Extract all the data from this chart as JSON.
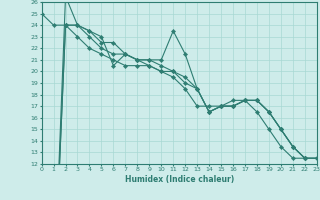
{
  "xlabel": "Humidex (Indice chaleur)",
  "xlim": [
    0,
    23
  ],
  "ylim": [
    12,
    26
  ],
  "yticks": [
    12,
    13,
    14,
    15,
    16,
    17,
    18,
    19,
    20,
    21,
    22,
    23,
    24,
    25,
    26
  ],
  "xticks": [
    0,
    1,
    2,
    3,
    4,
    5,
    6,
    7,
    8,
    9,
    10,
    11,
    12,
    13,
    14,
    15,
    16,
    17,
    18,
    19,
    20,
    21,
    22,
    23
  ],
  "bg_color": "#ceecea",
  "grid_color": "#a8d8d4",
  "line_color": "#2e7d72",
  "lines": [
    [
      0,
      26.5,
      24.0,
      23.5,
      23.0,
      20.5,
      21.5,
      21.0,
      21.0,
      21.0,
      23.5,
      21.5,
      18.5,
      16.5,
      17.0,
      17.0,
      17.5,
      17.5,
      16.5,
      15.0,
      13.5,
      12.5,
      12.5
    ],
    [
      0,
      24.0,
      24.0,
      23.0,
      22.0,
      21.5,
      21.5,
      21.0,
      20.5,
      20.0,
      20.0,
      19.5,
      18.5,
      16.5,
      17.0,
      17.0,
      17.5,
      17.5,
      16.5,
      15.0,
      13.5,
      12.5,
      12.5
    ],
    [
      0,
      24.0,
      24.0,
      23.5,
      22.5,
      22.5,
      21.5,
      21.0,
      21.0,
      20.5,
      20.0,
      19.0,
      18.5,
      16.5,
      17.0,
      17.0,
      17.5,
      17.5,
      16.5,
      15.0,
      13.5,
      12.5,
      12.5
    ],
    [
      25.0,
      24.0,
      24.0,
      23.0,
      22.0,
      21.5,
      21.0,
      20.5,
      20.5,
      20.5,
      20.0,
      19.5,
      18.5,
      17.0,
      17.0,
      17.0,
      17.5,
      17.5,
      16.5,
      15.0,
      13.5,
      12.5,
      12.5
    ]
  ],
  "line_starts": [
    1,
    1,
    1,
    0
  ]
}
